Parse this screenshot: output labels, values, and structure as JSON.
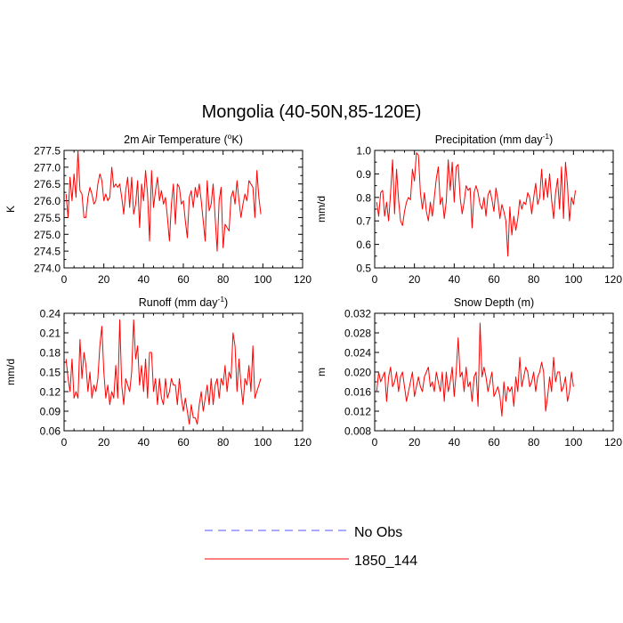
{
  "title": "Mongolia (40-50N,85-120E)",
  "legend": {
    "placement": "bottom-center",
    "items": [
      {
        "label": "No Obs",
        "color": "#5555ff",
        "style": "dashed"
      },
      {
        "label": "1850_144",
        "color": "#ff0000",
        "style": "solid"
      }
    ]
  },
  "chart_data": [
    {
      "type": "line",
      "title_main": "2m Air Temperature (",
      "title_sup": "o",
      "title_after": "K)",
      "ylabel": "K",
      "xlim": [
        0,
        120
      ],
      "ylim": [
        274.0,
        277.5
      ],
      "xticks": [
        "0",
        "20",
        "40",
        "60",
        "80",
        "100",
        "120"
      ],
      "xtick_values": [
        0,
        20,
        40,
        60,
        80,
        100,
        120
      ],
      "yticks": [
        "274.0",
        "274.5",
        "275.0",
        "275.5",
        "276.0",
        "276.5",
        "277.0",
        "277.5"
      ],
      "ytick_values": [
        274.0,
        274.5,
        275.0,
        275.5,
        276.0,
        276.5,
        277.0,
        277.5
      ],
      "x_start": 1,
      "series": [
        {
          "name": "1850_144",
          "color": "#ff0000",
          "values": [
            276.2,
            275.5,
            276.7,
            276.0,
            276.8,
            276.1,
            277.5,
            276.3,
            276.2,
            275.5,
            275.5,
            276.1,
            276.4,
            276.2,
            275.9,
            276.0,
            276.5,
            276.8,
            276.6,
            276.0,
            276.2,
            276.0,
            276.1,
            277.0,
            276.4,
            276.5,
            276.4,
            276.5,
            276.1,
            275.6,
            276.3,
            276.7,
            275.8,
            276.7,
            275.6,
            275.9,
            276.6,
            275.2,
            276.5,
            276.0,
            276.9,
            276.2,
            274.8,
            276.9,
            275.8,
            276.3,
            276.7,
            276.0,
            276.3,
            275.9,
            276.1,
            275.5,
            274.8,
            275.9,
            276.5,
            275.3,
            276.5,
            276.4,
            275.9,
            276.0,
            275.4,
            274.9,
            276.1,
            276.3,
            275.8,
            276.4,
            276.1,
            276.5,
            276.0,
            275.4,
            274.8,
            276.6,
            275.7,
            275.9,
            276.5,
            275.5,
            274.5,
            276.0,
            276.4,
            274.6,
            275.3,
            275.2,
            275.1,
            276.1,
            276.3,
            275.9,
            276.6,
            276.0,
            275.5,
            275.9,
            276.2,
            276.0,
            276.6,
            276.5,
            276.4,
            275.5,
            276.9,
            276.1,
            275.6
          ]
        }
      ]
    },
    {
      "type": "line",
      "title_main": "Precipitation (mm day",
      "title_sup": "-1",
      "title_after": ")",
      "ylabel": "mm/d",
      "xlim": [
        0,
        120
      ],
      "ylim": [
        0.5,
        1.0
      ],
      "xticks": [
        "0",
        "20",
        "40",
        "60",
        "80",
        "100",
        "120"
      ],
      "xtick_values": [
        0,
        20,
        40,
        60,
        80,
        100,
        120
      ],
      "yticks": [
        "0.5",
        "0.6",
        "0.7",
        "0.8",
        "0.9",
        "1.0"
      ],
      "ytick_values": [
        0.5,
        0.6,
        0.7,
        0.8,
        0.9,
        1.0
      ],
      "x_start": 1,
      "series": [
        {
          "name": "1850_144",
          "color": "#ff0000",
          "values": [
            0.78,
            0.72,
            0.82,
            0.83,
            0.72,
            0.78,
            0.7,
            0.82,
            0.96,
            0.73,
            0.92,
            0.79,
            0.7,
            0.68,
            0.74,
            0.78,
            0.8,
            0.79,
            0.92,
            0.87,
            0.99,
            0.98,
            0.82,
            0.75,
            0.82,
            0.74,
            0.7,
            0.78,
            0.72,
            0.8,
            0.88,
            0.93,
            0.77,
            0.8,
            0.71,
            0.78,
            0.96,
            0.83,
            0.95,
            0.78,
            0.93,
            0.94,
            0.8,
            0.73,
            0.78,
            0.85,
            0.83,
            0.84,
            0.67,
            0.82,
            0.85,
            0.82,
            0.77,
            0.75,
            0.8,
            0.72,
            0.81,
            0.83,
            0.79,
            0.74,
            0.84,
            0.79,
            0.71,
            0.77,
            0.74,
            0.7,
            0.55,
            0.76,
            0.64,
            0.72,
            0.66,
            0.71,
            0.79,
            0.75,
            0.78,
            0.77,
            0.82,
            0.8,
            0.73,
            0.8,
            0.86,
            0.77,
            0.8,
            0.92,
            0.79,
            0.88,
            0.8,
            0.9,
            0.79,
            0.71,
            0.82,
            0.88,
            0.75,
            0.93,
            0.71,
            0.95,
            0.85,
            0.7,
            0.8,
            0.77,
            0.83
          ]
        }
      ]
    },
    {
      "type": "line",
      "title_main": "Runoff (mm day",
      "title_sup": "-1",
      "title_after": ")",
      "ylabel": "mm/d",
      "xlim": [
        0,
        120
      ],
      "ylim": [
        0.06,
        0.24
      ],
      "xticks": [
        "0",
        "20",
        "40",
        "60",
        "80",
        "100",
        "120"
      ],
      "xtick_values": [
        0,
        20,
        40,
        60,
        80,
        100,
        120
      ],
      "yticks": [
        "0.06",
        "0.09",
        "0.12",
        "0.15",
        "0.18",
        "0.21",
        "0.24"
      ],
      "ytick_values": [
        0.06,
        0.09,
        0.12,
        0.15,
        0.18,
        0.21,
        0.24
      ],
      "x_start": 1,
      "series": [
        {
          "name": "1850_144",
          "color": "#ff0000",
          "values": [
            0.17,
            0.14,
            0.12,
            0.17,
            0.11,
            0.12,
            0.11,
            0.2,
            0.14,
            0.18,
            0.16,
            0.12,
            0.15,
            0.11,
            0.13,
            0.12,
            0.14,
            0.19,
            0.22,
            0.15,
            0.11,
            0.13,
            0.1,
            0.12,
            0.11,
            0.16,
            0.11,
            0.23,
            0.13,
            0.1,
            0.14,
            0.13,
            0.12,
            0.15,
            0.23,
            0.17,
            0.19,
            0.13,
            0.16,
            0.12,
            0.17,
            0.11,
            0.18,
            0.18,
            0.12,
            0.14,
            0.1,
            0.14,
            0.11,
            0.1,
            0.14,
            0.11,
            0.12,
            0.14,
            0.13,
            0.13,
            0.1,
            0.14,
            0.11,
            0.09,
            0.11,
            0.09,
            0.07,
            0.1,
            0.08,
            0.08,
            0.07,
            0.1,
            0.12,
            0.09,
            0.11,
            0.13,
            0.1,
            0.14,
            0.1,
            0.13,
            0.14,
            0.11,
            0.14,
            0.13,
            0.16,
            0.12,
            0.15,
            0.14,
            0.21,
            0.19,
            0.12,
            0.17,
            0.13,
            0.1,
            0.14,
            0.13,
            0.16,
            0.12,
            0.19,
            0.11,
            0.12,
            0.13,
            0.14
          ]
        }
      ]
    },
    {
      "type": "line",
      "title_main": "Snow Depth (m)",
      "title_sup": "",
      "title_after": "",
      "ylabel": "m",
      "xlim": [
        0,
        120
      ],
      "ylim": [
        0.008,
        0.032
      ],
      "xticks": [
        "0",
        "20",
        "40",
        "60",
        "80",
        "100",
        "120"
      ],
      "xtick_values": [
        0,
        20,
        40,
        60,
        80,
        100,
        120
      ],
      "yticks": [
        "0.008",
        "0.012",
        "0.016",
        "0.020",
        "0.024",
        "0.028",
        "0.032"
      ],
      "ytick_values": [
        0.008,
        0.012,
        0.016,
        0.02,
        0.024,
        0.028,
        0.032
      ],
      "x_start": 1,
      "series": [
        {
          "name": "1850_144",
          "color": "#ff0000",
          "values": [
            0.016,
            0.02,
            0.018,
            0.019,
            0.02,
            0.014,
            0.019,
            0.021,
            0.017,
            0.018,
            0.02,
            0.016,
            0.019,
            0.02,
            0.017,
            0.014,
            0.016,
            0.018,
            0.02,
            0.015,
            0.017,
            0.019,
            0.017,
            0.016,
            0.019,
            0.02,
            0.021,
            0.017,
            0.018,
            0.016,
            0.02,
            0.018,
            0.016,
            0.02,
            0.014,
            0.02,
            0.016,
            0.018,
            0.021,
            0.015,
            0.02,
            0.027,
            0.019,
            0.02,
            0.016,
            0.021,
            0.017,
            0.018,
            0.014,
            0.019,
            0.02,
            0.013,
            0.03,
            0.019,
            0.021,
            0.019,
            0.016,
            0.018,
            0.02,
            0.015,
            0.016,
            0.017,
            0.015,
            0.011,
            0.018,
            0.014,
            0.017,
            0.016,
            0.017,
            0.013,
            0.019,
            0.016,
            0.023,
            0.017,
            0.019,
            0.021,
            0.02,
            0.017,
            0.018,
            0.02,
            0.016,
            0.019,
            0.02,
            0.022,
            0.02,
            0.012,
            0.015,
            0.019,
            0.016,
            0.023,
            0.018,
            0.02,
            0.02,
            0.016,
            0.017,
            0.019,
            0.014,
            0.016,
            0.02,
            0.017
          ]
        }
      ]
    }
  ]
}
